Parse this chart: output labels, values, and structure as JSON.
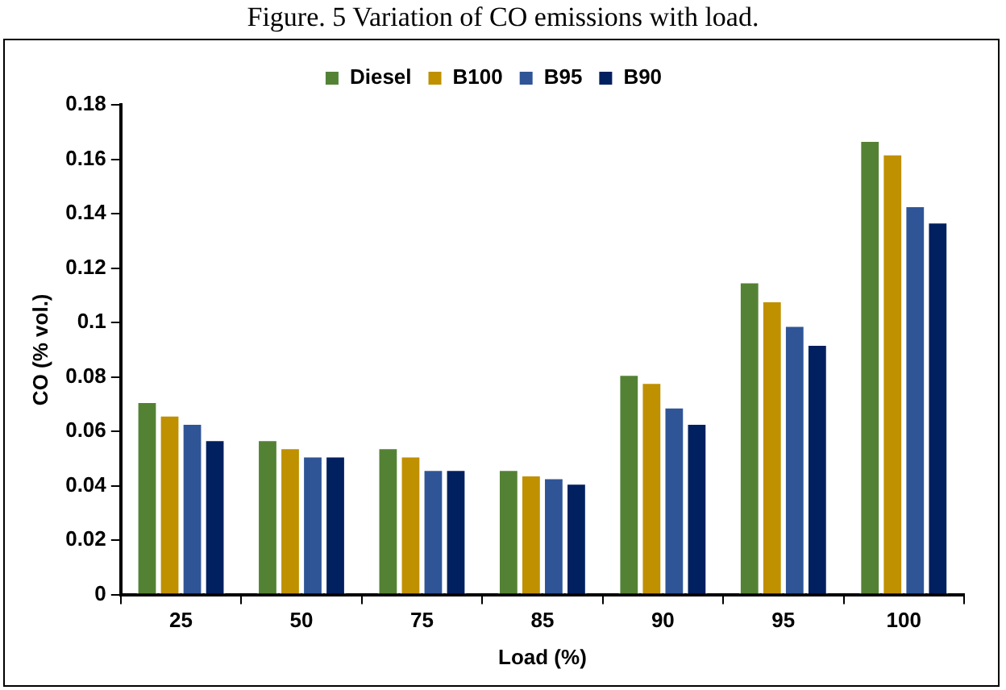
{
  "chart_data": {
    "type": "bar",
    "title": "Figure. 5 Variation of CO emissions with load.",
    "xlabel": "Load (%)",
    "ylabel": "CO (% vol.)",
    "categories": [
      "25",
      "50",
      "75",
      "85",
      "90",
      "95",
      "100"
    ],
    "series": [
      {
        "name": "Diesel",
        "color": "#548235",
        "values": [
          0.071,
          0.057,
          0.054,
          0.046,
          0.081,
          0.115,
          0.167
        ]
      },
      {
        "name": "B100",
        "color": "#bf9000",
        "values": [
          0.066,
          0.054,
          0.051,
          0.044,
          0.078,
          0.108,
          0.162
        ]
      },
      {
        "name": "B95",
        "color": "#2f5597",
        "values": [
          0.063,
          0.051,
          0.046,
          0.043,
          0.069,
          0.099,
          0.143
        ]
      },
      {
        "name": "B90",
        "color": "#002060",
        "values": [
          0.057,
          0.051,
          0.046,
          0.041,
          0.063,
          0.092,
          0.137
        ]
      }
    ],
    "ylim": [
      0,
      0.18
    ],
    "yticks": [
      0,
      0.02,
      0.04,
      0.06,
      0.08,
      0.1,
      0.12,
      0.14,
      0.16,
      0.18
    ],
    "grid": false,
    "legend": "top"
  }
}
